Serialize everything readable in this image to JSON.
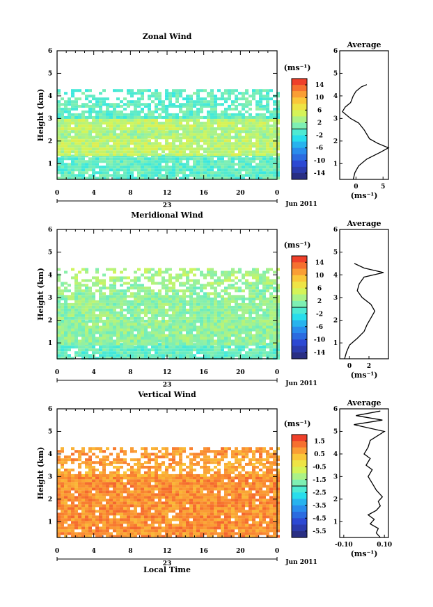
{
  "chart_data": [
    {
      "type": "heatmap",
      "title": "Zonal Wind",
      "ylabel": "Height (km)",
      "xticks": [
        "0",
        "4",
        "8",
        "12",
        "16",
        "20",
        "0"
      ],
      "xlim": [
        0,
        24
      ],
      "yticks": [
        "1",
        "2",
        "3",
        "4",
        "5",
        "6"
      ],
      "ylim": [
        0.3,
        6
      ],
      "date_label": "23",
      "month_label": "Jun 2011",
      "colorbar": {
        "unit": "(ms⁻¹)",
        "ticks": [
          "14",
          "10",
          "6",
          "2",
          "-2",
          "-6",
          "-10",
          "-14"
        ],
        "range": [
          -16,
          16
        ]
      },
      "bands": [
        {
          "y": [
            0.3,
            1.4
          ],
          "value": 0
        },
        {
          "y": [
            1.4,
            2.2
          ],
          "value": 4
        },
        {
          "y": [
            2.2,
            2.6
          ],
          "value": 3
        },
        {
          "y": [
            2.6,
            3.1
          ],
          "value": 4
        },
        {
          "y": [
            3.1,
            3.6
          ],
          "value": 0
        },
        {
          "y": [
            3.6,
            4.3
          ],
          "value": 0
        }
      ],
      "average_profile": {
        "title": "Average",
        "xlabel": "(ms⁻¹)",
        "xticks": [
          "0",
          "5"
        ],
        "xlim": [
          -3,
          6
        ],
        "height": [
          0.3,
          0.6,
          0.9,
          1.2,
          1.5,
          1.7,
          1.9,
          2.1,
          2.5,
          2.8,
          3.0,
          3.3,
          3.5,
          3.7,
          4.0,
          4.2,
          4.4,
          4.5
        ],
        "value": [
          -0.5,
          -0.2,
          0.5,
          2,
          4.5,
          6,
          4,
          2.5,
          1.5,
          0.5,
          -1,
          -2.5,
          -2,
          -1,
          -0.5,
          0,
          1,
          2
        ]
      }
    },
    {
      "type": "heatmap",
      "title": "Meridional Wind",
      "ylabel": "Height (km)",
      "xticks": [
        "0",
        "4",
        "8",
        "12",
        "16",
        "20",
        "0"
      ],
      "xlim": [
        0,
        24
      ],
      "yticks": [
        "1",
        "2",
        "3",
        "4",
        "5",
        "6"
      ],
      "ylim": [
        0.3,
        6
      ],
      "date_label": "23",
      "month_label": "Jun 2011",
      "colorbar": {
        "unit": "(ms⁻¹)",
        "ticks": [
          "14",
          "10",
          "6",
          "2",
          "-2",
          "-6",
          "-10",
          "-14"
        ],
        "range": [
          -16,
          16
        ]
      },
      "bands": [
        {
          "y": [
            0.3,
            1.0
          ],
          "value": 0
        },
        {
          "y": [
            1.0,
            2.0
          ],
          "value": 2
        },
        {
          "y": [
            2.0,
            3.0
          ],
          "value": 2
        },
        {
          "y": [
            3.0,
            3.6
          ],
          "value": 2
        },
        {
          "y": [
            3.6,
            4.3
          ],
          "value": 3
        }
      ],
      "average_profile": {
        "title": "Average",
        "xlabel": "(ms⁻¹)",
        "xticks": [
          "0",
          "2"
        ],
        "xlim": [
          -1,
          4
        ],
        "height": [
          0.3,
          0.6,
          0.9,
          1.2,
          1.5,
          1.8,
          2.1,
          2.4,
          2.7,
          3.0,
          3.3,
          3.6,
          3.9,
          4.1,
          4.3,
          4.5
        ],
        "value": [
          -0.5,
          -0.3,
          0,
          0.8,
          1.5,
          1.8,
          2.2,
          2.6,
          2.2,
          1.3,
          0.8,
          1.0,
          1.5,
          3.5,
          1.5,
          0.5
        ]
      }
    },
    {
      "type": "heatmap",
      "title": "Vertical Wind",
      "ylabel": "Height (km)",
      "xlabel": "Local Time",
      "xticks": [
        "0",
        "4",
        "8",
        "12",
        "16",
        "20",
        "0"
      ],
      "xlim": [
        0,
        24
      ],
      "yticks": [
        "1",
        "2",
        "3",
        "4",
        "5",
        "6"
      ],
      "ylim": [
        0.3,
        6
      ],
      "date_label": "23",
      "month_label": "Jun 2011",
      "colorbar": {
        "unit": "(ms⁻¹)",
        "ticks": [
          "1.5",
          "0.5",
          "-0.5",
          "-1.5",
          "-2.5",
          "-3.5",
          "-4.5",
          "-5.5"
        ],
        "range": [
          -6,
          2
        ]
      },
      "bands": [
        {
          "y": [
            0.3,
            3.0
          ],
          "value": 0.9
        },
        {
          "y": [
            3.0,
            3.6
          ],
          "value": 0.7
        },
        {
          "y": [
            3.6,
            4.3
          ],
          "value": 0.8
        }
      ],
      "average_profile": {
        "title": "Average",
        "xlabel": "(ms⁻¹)",
        "xticks": [
          "-0.10",
          "0.10"
        ],
        "xlim": [
          -0.12,
          0.12
        ],
        "height": [
          0.3,
          0.5,
          0.7,
          0.9,
          1.1,
          1.3,
          1.5,
          1.7,
          1.9,
          2.1,
          2.4,
          2.7,
          3.0,
          3.3,
          3.5,
          3.8,
          4.0,
          4.3,
          4.6,
          5.0,
          5.3,
          5.5,
          5.7,
          5.9
        ],
        "value": [
          0.08,
          0.06,
          0.07,
          0.03,
          0.05,
          0.02,
          0.06,
          0.08,
          0.07,
          0.09,
          0.06,
          0.04,
          0.02,
          0.04,
          0.01,
          0.03,
          0.0,
          0.02,
          0.03,
          0.1,
          -0.05,
          0.09,
          -0.04,
          0.08
        ]
      }
    }
  ]
}
